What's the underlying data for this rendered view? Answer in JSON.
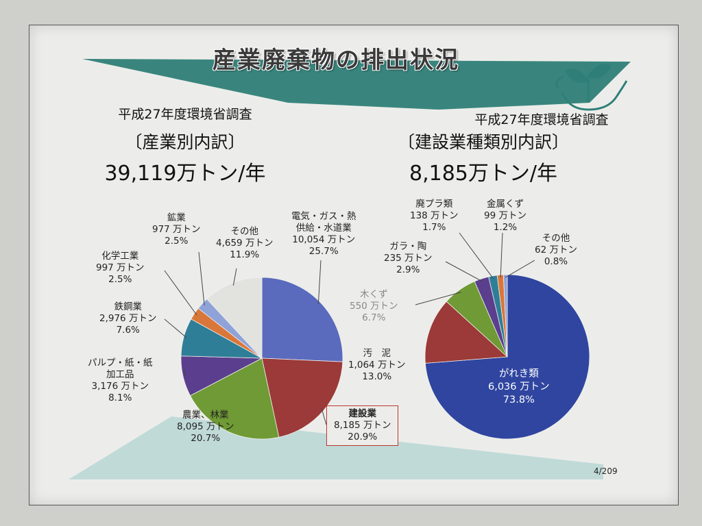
{
  "title": "産業廃棄物の排出状況",
  "page_number": "4/209",
  "left": {
    "survey": "平成27年度環境省調査",
    "category": "〔産業別内訳〕",
    "total": "39,119万トン/年"
  },
  "right": {
    "survey": "平成27年度環境省調査",
    "category": "〔建設業種類別内訳〕",
    "total": "8,185万トン/年"
  },
  "colors": {
    "teal": "#2f7f78",
    "pale_teal": "#b9d6d5",
    "box_red": "#b8352f"
  },
  "chart_data": [
    {
      "type": "pie",
      "unit": "万トン",
      "slices": [
        {
          "name": "電気・ガス・熱 供給・水道業",
          "line1": "電気・ガス・熱",
          "line2": "供給・水道業",
          "value": 10054,
          "value_label": "10,054 万トン",
          "percent": "25.7%",
          "color": "#5a6bbd"
        },
        {
          "name": "建設業",
          "line1": "建設業",
          "value": 8185,
          "value_label": "8,185 万トン",
          "percent": "20.9%",
          "color": "#9b3a38"
        },
        {
          "name": "農業、林業",
          "line1": "農業、林業",
          "value": 8095,
          "value_label": "8,095 万トン",
          "percent": "20.7%",
          "color": "#6f9a35"
        },
        {
          "name": "パルプ・紙・紙 加工品",
          "line1": "パルプ・紙・紙",
          "line2": "加工品",
          "value": 3176,
          "value_label": "3,176 万トン",
          "percent": "8.1%",
          "color": "#5b3f8e"
        },
        {
          "name": "鉄鋼業",
          "line1": "鉄鋼業",
          "value": 2976,
          "value_label": "2,976 万トン",
          "percent": "7.6%",
          "color": "#2f7e98"
        },
        {
          "name": "化学工業",
          "line1": "化学工業",
          "value": 997,
          "value_label": "997 万トン",
          "percent": "2.5%",
          "color": "#d9773a"
        },
        {
          "name": "鉱業",
          "line1": "鉱業",
          "value": 977,
          "value_label": "977 万トン",
          "percent": "2.5%",
          "color": "#8fa3d8"
        },
        {
          "name": "その他",
          "line1": "その他",
          "value": 4659,
          "value_label": "4,659 万トン",
          "percent": "11.9%",
          "color": "#e2e3df"
        }
      ]
    },
    {
      "type": "pie",
      "unit": "万トン",
      "slices": [
        {
          "name": "がれき類",
          "line1": "がれき類",
          "value": 6036,
          "value_label": "6,036 万トン",
          "percent": "73.8%",
          "color": "#2f45a0"
        },
        {
          "name": "汚泥",
          "line1": "汚　泥",
          "value": 1064,
          "value_label": "1,064 万トン",
          "percent": "13.0%",
          "color": "#9b3a38"
        },
        {
          "name": "木くず",
          "line1": "木くず",
          "value": 550,
          "value_label": "550 万トン",
          "percent": "6.7%",
          "color": "#6f9a35"
        },
        {
          "name": "ガラ・陶",
          "line1": "ガラ・陶",
          "value": 235,
          "value_label": "235 万トン",
          "percent": "2.9%",
          "color": "#5b3f8e"
        },
        {
          "name": "廃プラ類",
          "line1": "廃プラ類",
          "value": 138,
          "value_label": "138 万トン",
          "percent": "1.7%",
          "color": "#2f7e98"
        },
        {
          "name": "金属くず",
          "line1": "金属くず",
          "value": 99,
          "value_label": "99 万トン",
          "percent": "1.2%",
          "color": "#d9773a"
        },
        {
          "name": "その他",
          "line1": "その他",
          "value": 62,
          "value_label": "62 万トン",
          "percent": "0.8%",
          "color": "#8fa3d8"
        }
      ]
    }
  ]
}
